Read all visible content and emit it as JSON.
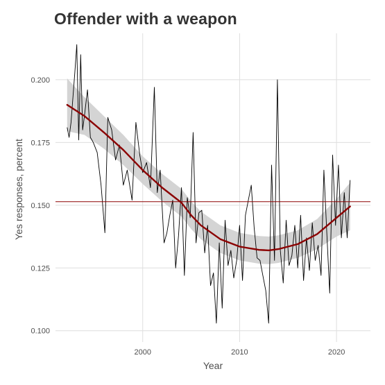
{
  "chart_data": {
    "type": "line",
    "title": "Offender with a weapon",
    "xlabel": "Year",
    "ylabel": "Yes responses, percent",
    "xlim": [
      1991.0,
      2023.5
    ],
    "ylim": [
      0.0955,
      0.2185
    ],
    "x_ticks": [
      2000,
      2010,
      2020
    ],
    "y_ticks": [
      0.1,
      0.125,
      0.15,
      0.175,
      0.2
    ],
    "y_tick_labels": [
      "0.100",
      "0.125",
      "0.150",
      "0.175",
      "0.200"
    ],
    "grid": true,
    "legend": "none",
    "reference_line": {
      "y": 0.1514,
      "color": "#8b0000"
    },
    "smooth_color": "#8b0000",
    "band_color": "#cccccc",
    "series": [
      {
        "kind": "raw",
        "color": "#000000",
        "x": [
          1992.2,
          1992.4,
          1992.6,
          1993.0,
          1993.2,
          1993.4,
          1993.6,
          1993.8,
          1994.0,
          1994.3,
          1994.6,
          1994.9,
          1995.3,
          1995.7,
          1996.1,
          1996.4,
          1996.8,
          1997.2,
          1997.6,
          1998.0,
          1998.4,
          1998.9,
          1999.3,
          1999.7,
          2000.0,
          2000.4,
          2000.8,
          2001.2,
          2001.5,
          2001.8,
          2002.2,
          2002.5,
          2002.8,
          2003.1,
          2003.4,
          2003.7,
          2004.0,
          2004.3,
          2004.6,
          2004.9,
          2005.2,
          2005.5,
          2005.8,
          2006.1,
          2006.4,
          2006.7,
          2007.0,
          2007.3,
          2007.6,
          2007.9,
          2008.2,
          2008.5,
          2008.8,
          2009.1,
          2009.4,
          2009.7,
          2010.0,
          2010.3,
          2010.6,
          2010.9,
          2011.2,
          2011.5,
          2011.8,
          2012.1,
          2012.4,
          2012.7,
          2013.0,
          2013.3,
          2013.6,
          2013.9,
          2014.2,
          2014.5,
          2014.8,
          2015.1,
          2015.4,
          2015.7,
          2016.0,
          2016.3,
          2016.6,
          2016.9,
          2017.2,
          2017.5,
          2017.8,
          2018.1,
          2018.4,
          2018.7,
          2019.0,
          2019.3,
          2019.6,
          2019.9,
          2020.2,
          2020.5,
          2020.8,
          2021.1,
          2021.4
        ],
        "y": [
          0.181,
          0.177,
          0.183,
          0.203,
          0.214,
          0.176,
          0.21,
          0.18,
          0.186,
          0.196,
          0.177,
          0.175,
          0.171,
          0.158,
          0.139,
          0.185,
          0.18,
          0.168,
          0.174,
          0.158,
          0.164,
          0.152,
          0.183,
          0.17,
          0.163,
          0.167,
          0.157,
          0.197,
          0.155,
          0.164,
          0.135,
          0.139,
          0.146,
          0.152,
          0.125,
          0.138,
          0.157,
          0.122,
          0.153,
          0.145,
          0.179,
          0.135,
          0.147,
          0.148,
          0.131,
          0.142,
          0.118,
          0.123,
          0.103,
          0.135,
          0.109,
          0.144,
          0.126,
          0.132,
          0.121,
          0.128,
          0.142,
          0.12,
          0.146,
          0.152,
          0.158,
          0.141,
          0.129,
          0.128,
          0.122,
          0.116,
          0.103,
          0.166,
          0.128,
          0.2,
          0.132,
          0.119,
          0.144,
          0.126,
          0.13,
          0.142,
          0.125,
          0.146,
          0.12,
          0.137,
          0.124,
          0.143,
          0.128,
          0.134,
          0.122,
          0.164,
          0.139,
          0.115,
          0.17,
          0.142,
          0.166,
          0.137,
          0.155,
          0.137,
          0.16
        ]
      },
      {
        "kind": "smooth",
        "color": "#8b0000",
        "x": [
          1992.2,
          1994.0,
          1996.0,
          1998.0,
          2000.0,
          2002.0,
          2004.0,
          2005.0,
          2006.0,
          2008.0,
          2010.0,
          2012.0,
          2013.0,
          2014.0,
          2016.0,
          2018.0,
          2020.0,
          2021.4
        ],
        "y": [
          0.19,
          0.1855,
          0.179,
          0.172,
          0.164,
          0.157,
          0.151,
          0.146,
          0.142,
          0.1365,
          0.1335,
          0.1322,
          0.132,
          0.1325,
          0.1345,
          0.1385,
          0.145,
          0.1495
        ],
        "band_half_width": [
          0.0105,
          0.0075,
          0.0065,
          0.006,
          0.0055,
          0.0055,
          0.0055,
          0.0055,
          0.0055,
          0.0055,
          0.0055,
          0.0055,
          0.0055,
          0.0055,
          0.0055,
          0.006,
          0.0075,
          0.0095
        ]
      }
    ]
  }
}
